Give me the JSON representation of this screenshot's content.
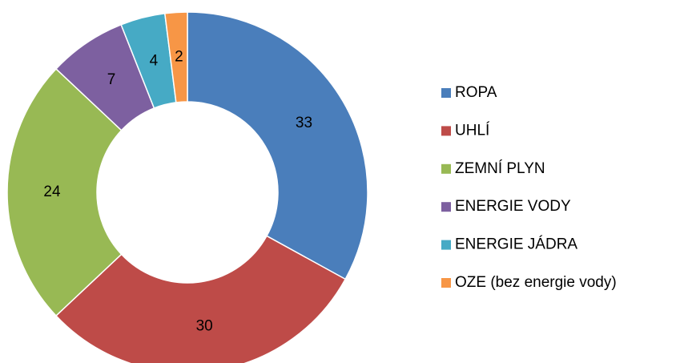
{
  "chart_data": {
    "type": "pie",
    "categories": [
      "ROPA",
      "UHLÍ",
      "ZEMNÍ PLYN",
      "ENERGIE VODY",
      "ENERGIE JÁDRA",
      "OZE (bez energie vody)"
    ],
    "values": [
      33,
      30,
      24,
      7,
      4,
      2
    ],
    "colors": [
      "#4a7ebb",
      "#be4b48",
      "#98b954",
      "#7d60a0",
      "#46aac5",
      "#f79646"
    ],
    "legend": "right"
  }
}
